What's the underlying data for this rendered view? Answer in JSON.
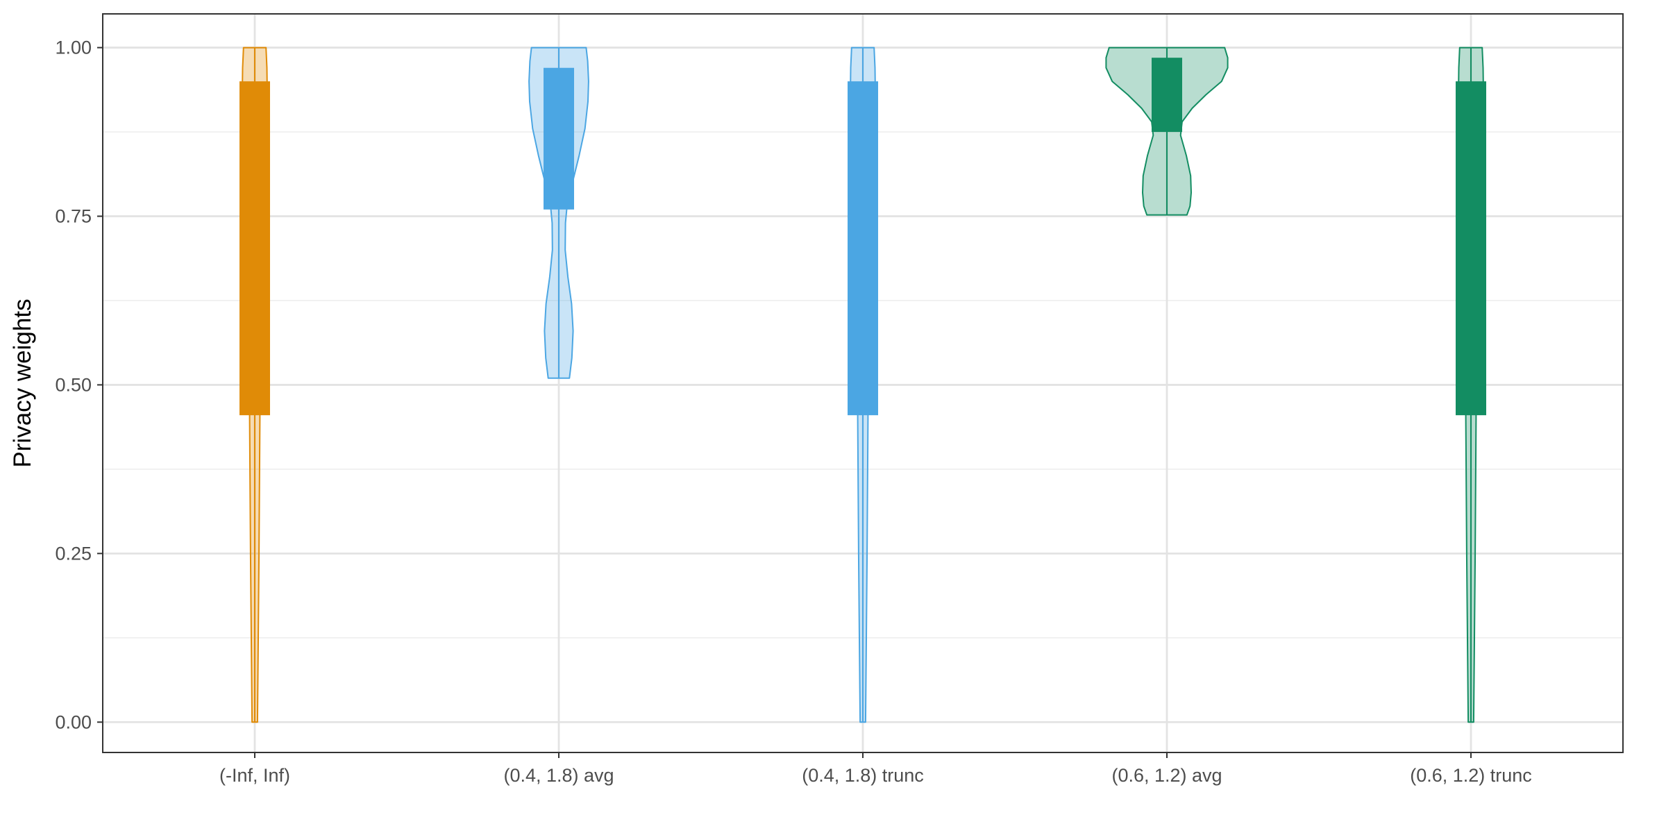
{
  "chart_data": {
    "type": "violin",
    "ylabel": "Privacy weights",
    "xlabel": "",
    "ylim": [
      -0.045,
      1.05
    ],
    "y_ticks": [
      0,
      0.25,
      0.5,
      0.75,
      1.0
    ],
    "y_tick_labels": [
      "0.00",
      "0.25",
      "0.50",
      "0.75",
      "1.00"
    ],
    "y_minor_ticks": [
      0.125,
      0.375,
      0.625,
      0.875
    ],
    "grid": true,
    "legend": "none",
    "categories": [
      "(-Inf, Inf)",
      "(0.4, 1.8) avg",
      "(0.4, 1.8) trunc",
      "(0.6, 1.2) avg",
      "(0.6, 1.2) trunc"
    ],
    "series": [
      {
        "category": "(-Inf, Inf)",
        "color": "#E08B07",
        "y_min": 0.0,
        "y_max": 1.0,
        "q1": 0.455,
        "q3": 0.95,
        "density": [
          [
            0.0,
            0.009
          ],
          [
            0.1,
            0.011
          ],
          [
            0.25,
            0.014
          ],
          [
            0.45,
            0.017
          ],
          [
            0.55,
            0.017
          ],
          [
            0.65,
            0.019
          ],
          [
            0.75,
            0.026
          ],
          [
            0.85,
            0.038
          ],
          [
            0.93,
            0.041
          ],
          [
            0.97,
            0.04
          ],
          [
            1.0,
            0.037
          ]
        ]
      },
      {
        "category": "(0.4, 1.8) avg",
        "color": "#4BA6E3",
        "y_min": 0.51,
        "y_max": 1.0,
        "q1": 0.76,
        "q3": 0.97,
        "density": [
          [
            0.51,
            0.035
          ],
          [
            0.54,
            0.043
          ],
          [
            0.58,
            0.047
          ],
          [
            0.62,
            0.042
          ],
          [
            0.66,
            0.03
          ],
          [
            0.7,
            0.021
          ],
          [
            0.74,
            0.022
          ],
          [
            0.77,
            0.028
          ],
          [
            0.8,
            0.045
          ],
          [
            0.84,
            0.067
          ],
          [
            0.88,
            0.086
          ],
          [
            0.92,
            0.096
          ],
          [
            0.95,
            0.098
          ],
          [
            0.98,
            0.095
          ],
          [
            1.0,
            0.09
          ]
        ]
      },
      {
        "category": "(0.4, 1.8) trunc",
        "color": "#4BA6E3",
        "y_min": 0.0,
        "y_max": 1.0,
        "q1": 0.455,
        "q3": 0.95,
        "density": [
          [
            0.0,
            0.009
          ],
          [
            0.1,
            0.011
          ],
          [
            0.25,
            0.014
          ],
          [
            0.45,
            0.017
          ],
          [
            0.55,
            0.017
          ],
          [
            0.65,
            0.019
          ],
          [
            0.75,
            0.026
          ],
          [
            0.85,
            0.038
          ],
          [
            0.93,
            0.041
          ],
          [
            0.97,
            0.04
          ],
          [
            1.0,
            0.037
          ]
        ]
      },
      {
        "category": "(0.6, 1.2) avg",
        "color": "#138D62",
        "y_min": 0.752,
        "y_max": 1.0,
        "q1": 0.875,
        "q3": 0.985,
        "density": [
          [
            0.752,
            0.066
          ],
          [
            0.765,
            0.076
          ],
          [
            0.785,
            0.08
          ],
          [
            0.81,
            0.078
          ],
          [
            0.84,
            0.064
          ],
          [
            0.87,
            0.045
          ],
          [
            0.89,
            0.05
          ],
          [
            0.91,
            0.083
          ],
          [
            0.93,
            0.128
          ],
          [
            0.95,
            0.18
          ],
          [
            0.97,
            0.2
          ],
          [
            0.985,
            0.2
          ],
          [
            1.0,
            0.19
          ]
        ]
      },
      {
        "category": "(0.6, 1.2) trunc",
        "color": "#138D62",
        "y_min": 0.0,
        "y_max": 1.0,
        "q1": 0.455,
        "q3": 0.95,
        "density": [
          [
            0.0,
            0.009
          ],
          [
            0.1,
            0.011
          ],
          [
            0.25,
            0.014
          ],
          [
            0.45,
            0.017
          ],
          [
            0.55,
            0.017
          ],
          [
            0.65,
            0.019
          ],
          [
            0.75,
            0.026
          ],
          [
            0.85,
            0.038
          ],
          [
            0.93,
            0.041
          ],
          [
            0.97,
            0.04
          ],
          [
            1.0,
            0.037
          ]
        ]
      }
    ]
  }
}
